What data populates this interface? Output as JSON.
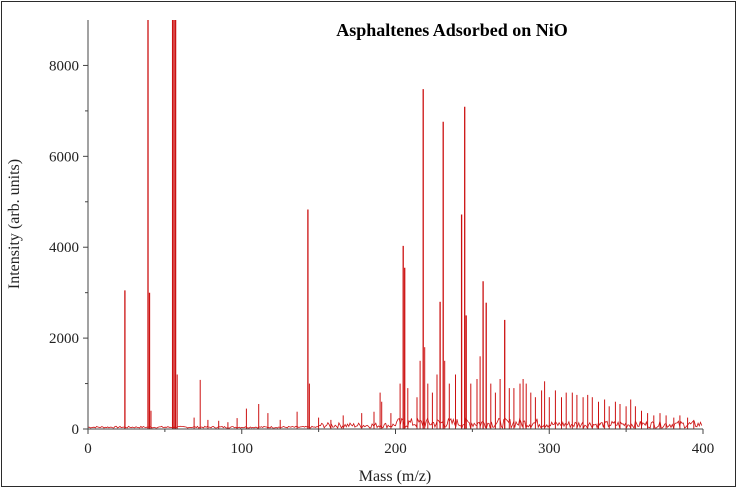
{
  "chart_data": {
    "type": "line",
    "title": "Asphaltenes Adsorbed on NiO",
    "xlabel": "Mass (m/z)",
    "ylabel": "Intensity (arb. units)",
    "xlim": [
      0,
      400
    ],
    "ylim": [
      0,
      9000
    ],
    "xticks": [
      "0",
      "100",
      "200",
      "300",
      "400"
    ],
    "yticks": [
      "0",
      "2000",
      "4000",
      "6000",
      "8000"
    ],
    "grid": false,
    "color": "#cc1111",
    "peaks": [
      {
        "x": 24,
        "y": 3050
      },
      {
        "x": 39,
        "y": 9000
      },
      {
        "x": 40,
        "y": 3000
      },
      {
        "x": 41,
        "y": 400
      },
      {
        "x": 55,
        "y": 9000
      },
      {
        "x": 56,
        "y": 9000
      },
      {
        "x": 57,
        "y": 9000
      },
      {
        "x": 58,
        "y": 1200
      },
      {
        "x": 69,
        "y": 250
      },
      {
        "x": 73,
        "y": 1080
      },
      {
        "x": 78,
        "y": 200
      },
      {
        "x": 85,
        "y": 180
      },
      {
        "x": 91,
        "y": 150
      },
      {
        "x": 97,
        "y": 240
      },
      {
        "x": 103,
        "y": 450
      },
      {
        "x": 111,
        "y": 550
      },
      {
        "x": 117,
        "y": 350
      },
      {
        "x": 125,
        "y": 200
      },
      {
        "x": 136,
        "y": 380
      },
      {
        "x": 143,
        "y": 4830
      },
      {
        "x": 144,
        "y": 1000
      },
      {
        "x": 150,
        "y": 250
      },
      {
        "x": 158,
        "y": 200
      },
      {
        "x": 166,
        "y": 300
      },
      {
        "x": 178,
        "y": 350
      },
      {
        "x": 186,
        "y": 380
      },
      {
        "x": 190,
        "y": 800
      },
      {
        "x": 191,
        "y": 600
      },
      {
        "x": 197,
        "y": 350
      },
      {
        "x": 203,
        "y": 1000
      },
      {
        "x": 205,
        "y": 4030
      },
      {
        "x": 206,
        "y": 3550
      },
      {
        "x": 208,
        "y": 900
      },
      {
        "x": 214,
        "y": 700
      },
      {
        "x": 216,
        "y": 1500
      },
      {
        "x": 218,
        "y": 7480
      },
      {
        "x": 219,
        "y": 1800
      },
      {
        "x": 221,
        "y": 1000
      },
      {
        "x": 224,
        "y": 800
      },
      {
        "x": 227,
        "y": 1200
      },
      {
        "x": 229,
        "y": 2800
      },
      {
        "x": 231,
        "y": 6760
      },
      {
        "x": 232,
        "y": 1500
      },
      {
        "x": 235,
        "y": 1000
      },
      {
        "x": 239,
        "y": 1200
      },
      {
        "x": 243,
        "y": 4720
      },
      {
        "x": 245,
        "y": 7090
      },
      {
        "x": 246,
        "y": 2500
      },
      {
        "x": 249,
        "y": 1000
      },
      {
        "x": 253,
        "y": 1100
      },
      {
        "x": 255,
        "y": 1600
      },
      {
        "x": 257,
        "y": 3250
      },
      {
        "x": 259,
        "y": 2780
      },
      {
        "x": 262,
        "y": 1000
      },
      {
        "x": 265,
        "y": 800
      },
      {
        "x": 268,
        "y": 1100
      },
      {
        "x": 271,
        "y": 2400
      },
      {
        "x": 274,
        "y": 900
      },
      {
        "x": 277,
        "y": 900
      },
      {
        "x": 281,
        "y": 1000
      },
      {
        "x": 283,
        "y": 1100
      },
      {
        "x": 285,
        "y": 1000
      },
      {
        "x": 288,
        "y": 800
      },
      {
        "x": 291,
        "y": 700
      },
      {
        "x": 295,
        "y": 850
      },
      {
        "x": 297,
        "y": 1050
      },
      {
        "x": 300,
        "y": 700
      },
      {
        "x": 304,
        "y": 850
      },
      {
        "x": 308,
        "y": 700
      },
      {
        "x": 311,
        "y": 800
      },
      {
        "x": 315,
        "y": 800
      },
      {
        "x": 318,
        "y": 750
      },
      {
        "x": 322,
        "y": 700
      },
      {
        "x": 325,
        "y": 750
      },
      {
        "x": 328,
        "y": 700
      },
      {
        "x": 332,
        "y": 600
      },
      {
        "x": 336,
        "y": 650
      },
      {
        "x": 339,
        "y": 500
      },
      {
        "x": 343,
        "y": 600
      },
      {
        "x": 346,
        "y": 550
      },
      {
        "x": 350,
        "y": 500
      },
      {
        "x": 353,
        "y": 650
      },
      {
        "x": 356,
        "y": 500
      },
      {
        "x": 360,
        "y": 400
      },
      {
        "x": 364,
        "y": 350
      },
      {
        "x": 368,
        "y": 300
      },
      {
        "x": 372,
        "y": 350
      },
      {
        "x": 376,
        "y": 300
      },
      {
        "x": 381,
        "y": 250
      },
      {
        "x": 385,
        "y": 300
      },
      {
        "x": 390,
        "y": 250
      },
      {
        "x": 394,
        "y": 200
      }
    ]
  }
}
